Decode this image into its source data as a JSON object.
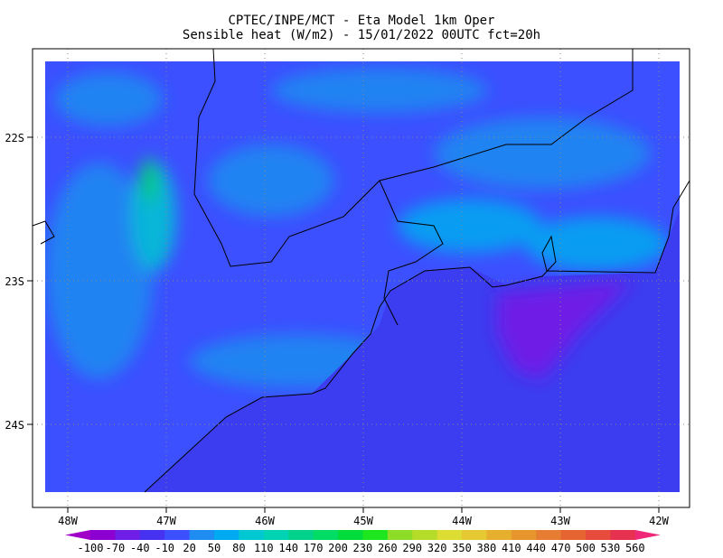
{
  "header": {
    "line1": "CPTEC/INPE/MCT -  Eta Model 1km Oper",
    "line2": "Sensible heat (W/m2) - 15/01/2022 00UTC fct=20h"
  },
  "map": {
    "lat_labels": [
      "22S",
      "23S",
      "24S"
    ],
    "lon_labels": [
      "48W",
      "47W",
      "46W",
      "45W",
      "44W",
      "43W",
      "42W"
    ]
  },
  "colorbar": {
    "levels": [
      -100,
      -70,
      -40,
      -10,
      20,
      50,
      80,
      110,
      140,
      170,
      200,
      230,
      260,
      290,
      320,
      350,
      380,
      410,
      440,
      470,
      500,
      530,
      560
    ],
    "colors": [
      "#a000c8",
      "#8c00d2",
      "#6e1ee6",
      "#4632f0",
      "#3c50ff",
      "#1e8cf0",
      "#00aaf0",
      "#00c8d2",
      "#00d2b4",
      "#00d28c",
      "#00dc64",
      "#00dc3c",
      "#1ee61e",
      "#8cdc28",
      "#b4dc28",
      "#dcdc32",
      "#e6c832",
      "#e6af2d",
      "#e6962d",
      "#e67d32",
      "#e66432",
      "#e64b3c",
      "#e63250",
      "#f0287a"
    ]
  }
}
